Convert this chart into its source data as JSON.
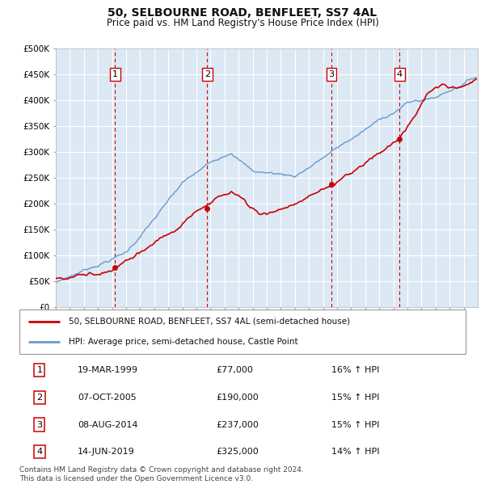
{
  "title": "50, SELBOURNE ROAD, BENFLEET, SS7 4AL",
  "subtitle": "Price paid vs. HM Land Registry's House Price Index (HPI)",
  "ylabel_ticks": [
    "£0",
    "£50K",
    "£100K",
    "£150K",
    "£200K",
    "£250K",
    "£300K",
    "£350K",
    "£400K",
    "£450K",
    "£500K"
  ],
  "ytick_values": [
    0,
    50000,
    100000,
    150000,
    200000,
    250000,
    300000,
    350000,
    400000,
    450000,
    500000
  ],
  "xlim": [
    1995,
    2025
  ],
  "ylim": [
    0,
    500000
  ],
  "plot_bg_color": "#dce9f5",
  "grid_color": "#ffffff",
  "sale_color": "#cc0000",
  "hpi_color": "#6699cc",
  "transactions": [
    {
      "date_x": 1999.21,
      "price": 77000,
      "label": "1"
    },
    {
      "date_x": 2005.77,
      "price": 190000,
      "label": "2"
    },
    {
      "date_x": 2014.6,
      "price": 237000,
      "label": "3"
    },
    {
      "date_x": 2019.45,
      "price": 325000,
      "label": "4"
    }
  ],
  "legend_sale_label": "50, SELBOURNE ROAD, BENFLEET, SS7 4AL (semi-detached house)",
  "legend_hpi_label": "HPI: Average price, semi-detached house, Castle Point",
  "footnote": "Contains HM Land Registry data © Crown copyright and database right 2024.\nThis data is licensed under the Open Government Licence v3.0.",
  "table_rows": [
    {
      "num": "1",
      "date": "19-MAR-1999",
      "price": "£77,000",
      "hpi": "16% ↑ HPI"
    },
    {
      "num": "2",
      "date": "07-OCT-2005",
      "price": "£190,000",
      "hpi": "15% ↑ HPI"
    },
    {
      "num": "3",
      "date": "08-AUG-2014",
      "price": "£237,000",
      "hpi": "15% ↑ HPI"
    },
    {
      "num": "4",
      "date": "14-JUN-2019",
      "price": "£325,000",
      "hpi": "14% ↑ HPI"
    }
  ]
}
